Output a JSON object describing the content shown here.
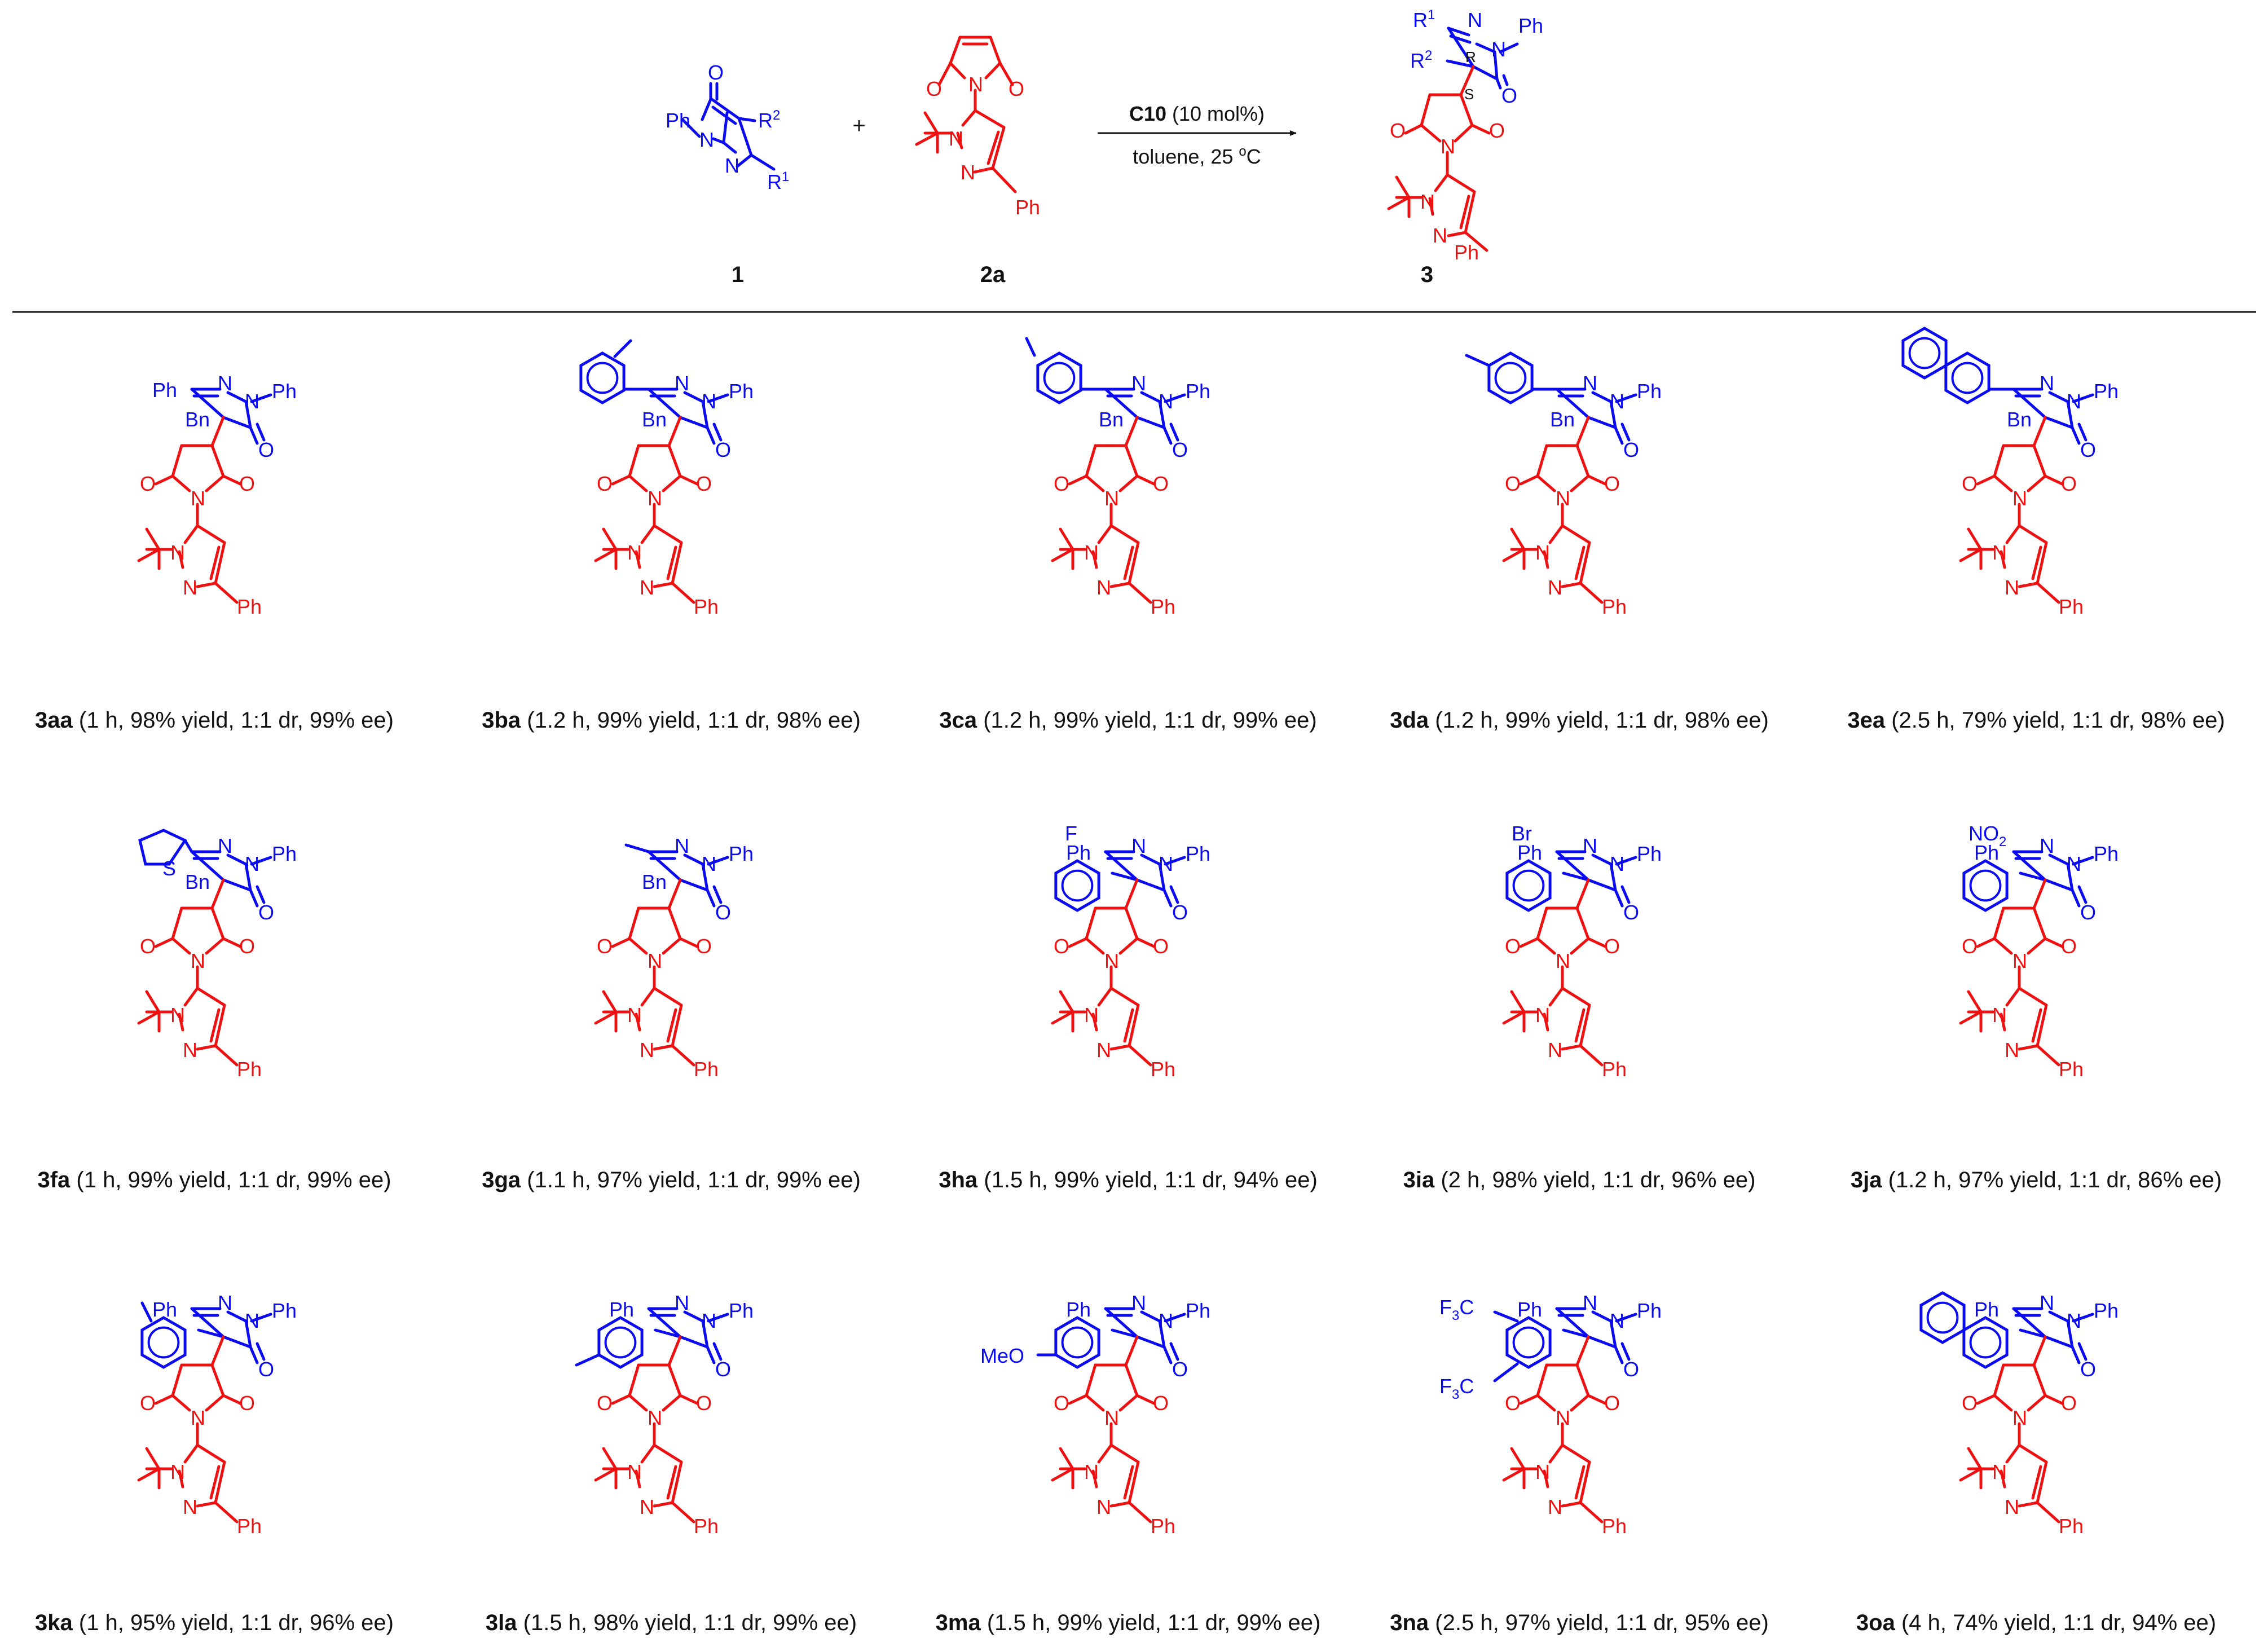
{
  "colors": {
    "substrate1": "#0b0bf0",
    "substrate2": "#ee1111",
    "text": "#111111"
  },
  "reaction": {
    "reactant1": {
      "label": "1",
      "atoms": {
        "ph": "Ph",
        "n1": "N",
        "n2": "N",
        "o": "O",
        "r1": "R",
        "r1_sup": "1",
        "r2": "R",
        "r2_sup": "2"
      }
    },
    "plus": "+",
    "reactant2": {
      "label": "2a",
      "atoms": {
        "o1": "O",
        "o2": "O",
        "n_imide": "N",
        "n1": "N",
        "n2": "N",
        "ph": "Ph"
      }
    },
    "catalyst": "C10",
    "catalyst_loading": "(10 mol%)",
    "conditions": "toluene, 25 ",
    "conditions_unit_sup": "o",
    "conditions_unit": "C",
    "product": {
      "label": "3",
      "atoms": {
        "r1": "R",
        "r1_sup": "1",
        "r2": "R",
        "r2_sup": "2",
        "n1": "N",
        "n2": "N",
        "ph_n": "Ph",
        "o_top": "O",
        "o1": "O",
        "o2": "O",
        "n_imide": "N",
        "pn1": "N",
        "pn2": "N",
        "ph": "Ph",
        "stereo_r": "R",
        "stereo_s": "S"
      }
    }
  },
  "common_atoms": {
    "ph": "Ph",
    "n": "N",
    "o": "O",
    "bn": "Bn"
  },
  "substituents": {
    "F": "F",
    "Br": "Br",
    "NO": "NO",
    "NO_sub": "2",
    "MeO": "MeO",
    "F3C": "F",
    "F3C_sub": "3",
    "F3C_c": "C",
    "S": "S"
  },
  "entries": [
    {
      "id": "3aa",
      "details": "(1 h, 98% yield, 1:1 dr, 99% ee)",
      "r1": "Ph",
      "r2": "Bn"
    },
    {
      "id": "3ba",
      "details": "(1.2 h, 99% yield, 1:1 dr, 98% ee)",
      "r1": "2-MeC6H4",
      "r2": "Bn"
    },
    {
      "id": "3ca",
      "details": "(1.2 h, 99% yield, 1:1 dr, 99% ee)",
      "r1": "3-MeC6H4",
      "r2": "Bn"
    },
    {
      "id": "3da",
      "details": "(1.2 h, 99% yield, 1:1 dr, 98% ee)",
      "r1": "4-MeC6H4",
      "r2": "Bn"
    },
    {
      "id": "3ea",
      "details": "(2.5 h, 79% yield, 1:1 dr, 98% ee)",
      "r1": "2-naphthyl",
      "r2": "Bn"
    },
    {
      "id": "3fa",
      "details": "(1 h,  99% yield, 1:1 dr, 99% ee)",
      "r1": "2-thienyl",
      "r2": "Bn"
    },
    {
      "id": "3ga",
      "details": "(1.1 h, 97% yield, 1:1 dr, 99% ee)",
      "r1": "Me",
      "r2": "Bn"
    },
    {
      "id": "3ha",
      "details": "(1.5 h, 99% yield, 1:1 dr, 94% ee)",
      "r1": "Ph",
      "r2": "2-FC6H4CH2"
    },
    {
      "id": "3ia",
      "details": "(2 h, 98% yield, 1:1 dr, 96% ee)",
      "r1": "Ph",
      "r2": "2-BrC6H4CH2"
    },
    {
      "id": "3ja",
      "details": "(1.2 h, 97% yield, 1:1 dr, 86% ee)",
      "r1": "Ph",
      "r2": "2-NO2C6H4CH2"
    },
    {
      "id": "3ka",
      "details": "(1 h, 95% yield, 1:1 dr, 96% ee)",
      "r1": "Ph",
      "r2": "3-MeC6H4CH2"
    },
    {
      "id": "3la",
      "details": "(1.5 h,  98% yield, 1:1 dr, 99% ee)",
      "r1": "Ph",
      "r2": "4-MeC6H4CH2"
    },
    {
      "id": "3ma",
      "details": "(1.5 h, 99% yield, 1:1 dr, 99% ee)",
      "r1": "Ph",
      "r2": "4-MeOC6H4CH2"
    },
    {
      "id": "3na",
      "details": "(2.5 h, 97% yield, 1:1 dr, 95% ee)",
      "r1": "Ph",
      "r2": "3,5-(CF3)2C6H3CH2"
    },
    {
      "id": "3oa",
      "details": "(4 h, 74% yield, 1:1 dr, 94% ee)",
      "r1": "Ph",
      "r2": "2-naphthylmethyl"
    }
  ]
}
